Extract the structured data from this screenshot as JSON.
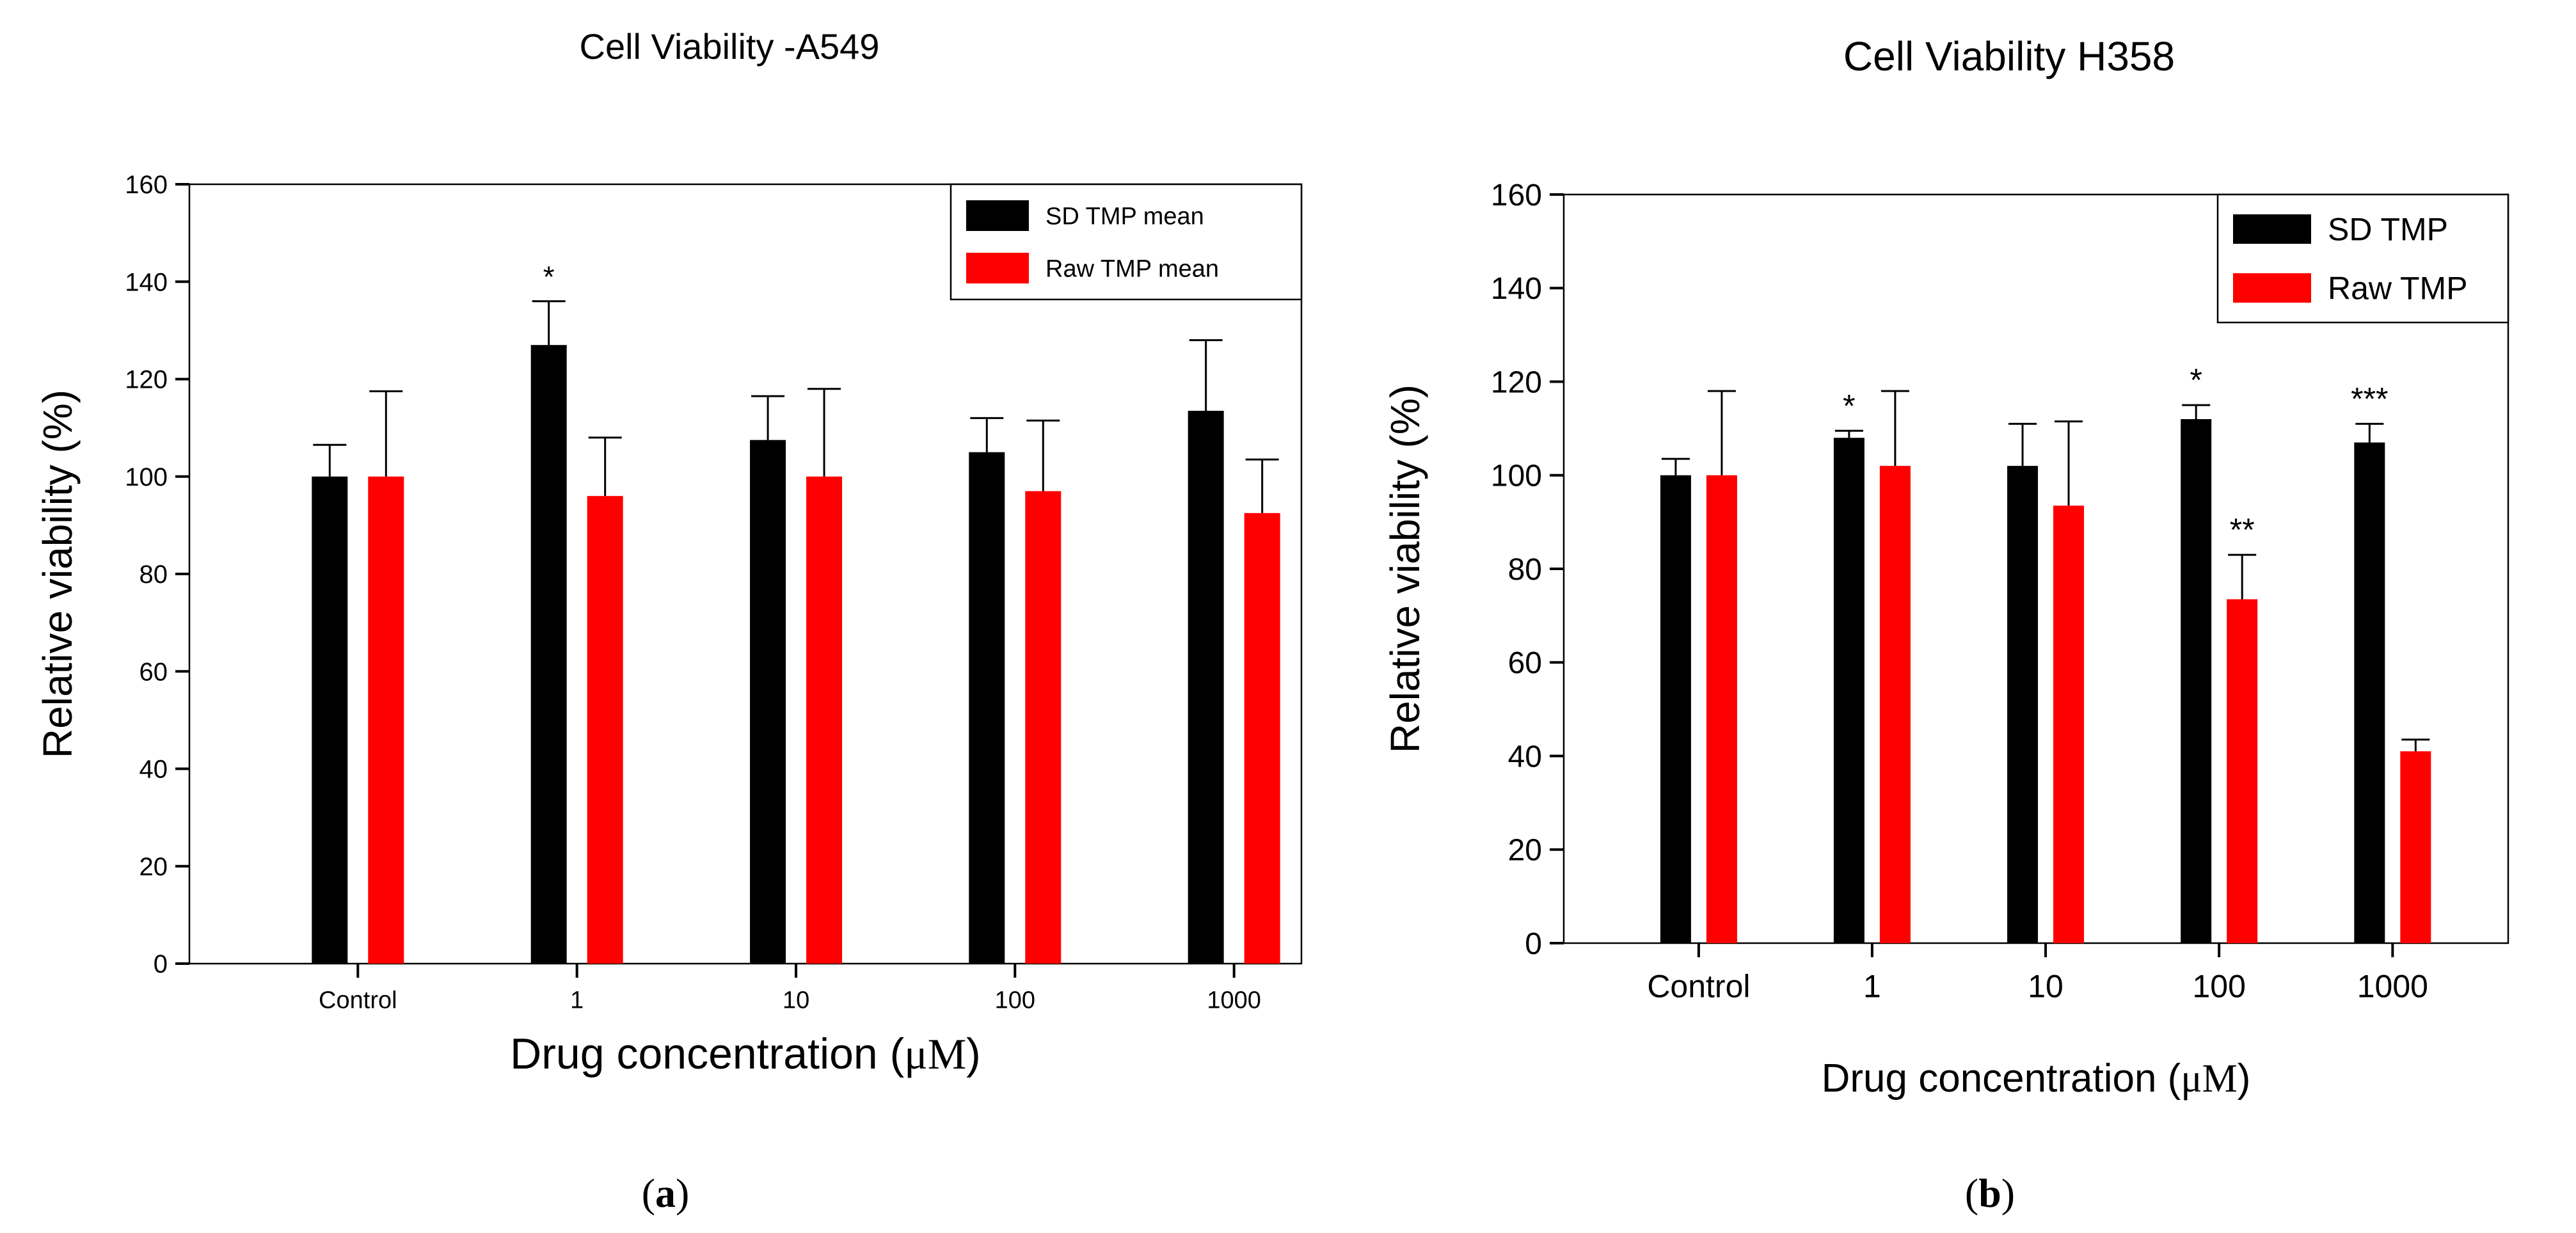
{
  "colors": {
    "series_black": "#000000",
    "series_red": "#ff0000",
    "axis": "#000000",
    "background": "#ffffff"
  },
  "chart_data": [
    {
      "type": "bar",
      "panel_label": "a",
      "title": "Cell Viability -A549",
      "xlabel": "Drug concentration (",
      "xlabel_unit": "μM",
      "xlabel_close": ")",
      "ylabel": "Relative viability (%)",
      "ylim": [
        0,
        160
      ],
      "yticks": [
        0,
        20,
        40,
        60,
        80,
        100,
        120,
        140,
        160
      ],
      "categories": [
        "Control",
        "1",
        "10",
        "100",
        "1000"
      ],
      "legend_position": "top-right",
      "series": [
        {
          "name": "SD TMP mean",
          "color": "#000000",
          "values": [
            100,
            127,
            107.5,
            105,
            113.5
          ],
          "errors": [
            6.5,
            9,
            9,
            7,
            14.5
          ]
        },
        {
          "name": "Raw TMP mean",
          "color": "#ff0000",
          "values": [
            100,
            96,
            100,
            97,
            92.5
          ],
          "errors": [
            17.5,
            12,
            18,
            14.5,
            11
          ]
        }
      ],
      "annotations": [
        {
          "category": "1",
          "series": "SD TMP mean",
          "text": "*"
        }
      ]
    },
    {
      "type": "bar",
      "panel_label": "b",
      "title": "Cell Viability H358",
      "xlabel": "Drug concentration (",
      "xlabel_unit": "μM",
      "xlabel_close": ")",
      "ylabel": "Relative viability (%)",
      "ylim": [
        0,
        160
      ],
      "yticks": [
        0,
        20,
        40,
        60,
        80,
        100,
        120,
        140,
        160
      ],
      "categories": [
        "Control",
        "1",
        "10",
        "100",
        "1000"
      ],
      "legend_position": "top-right",
      "series": [
        {
          "name": "SD  TMP",
          "color": "#000000",
          "values": [
            100,
            108,
            102,
            112,
            107
          ],
          "errors": [
            3.5,
            1.5,
            9,
            3,
            4
          ]
        },
        {
          "name": "Raw TMP",
          "color": "#ff0000",
          "values": [
            100,
            102,
            93.5,
            73.5,
            41
          ],
          "errors": [
            18,
            16,
            18,
            9.5,
            2.5
          ]
        }
      ],
      "annotations": [
        {
          "category": "1",
          "series": "SD  TMP",
          "text": "*"
        },
        {
          "category": "100",
          "series": "SD  TMP",
          "text": "*"
        },
        {
          "category": "100",
          "series": "Raw TMP",
          "text": "**"
        },
        {
          "category": "1000",
          "series": "SD  TMP",
          "text": "***"
        }
      ]
    }
  ]
}
